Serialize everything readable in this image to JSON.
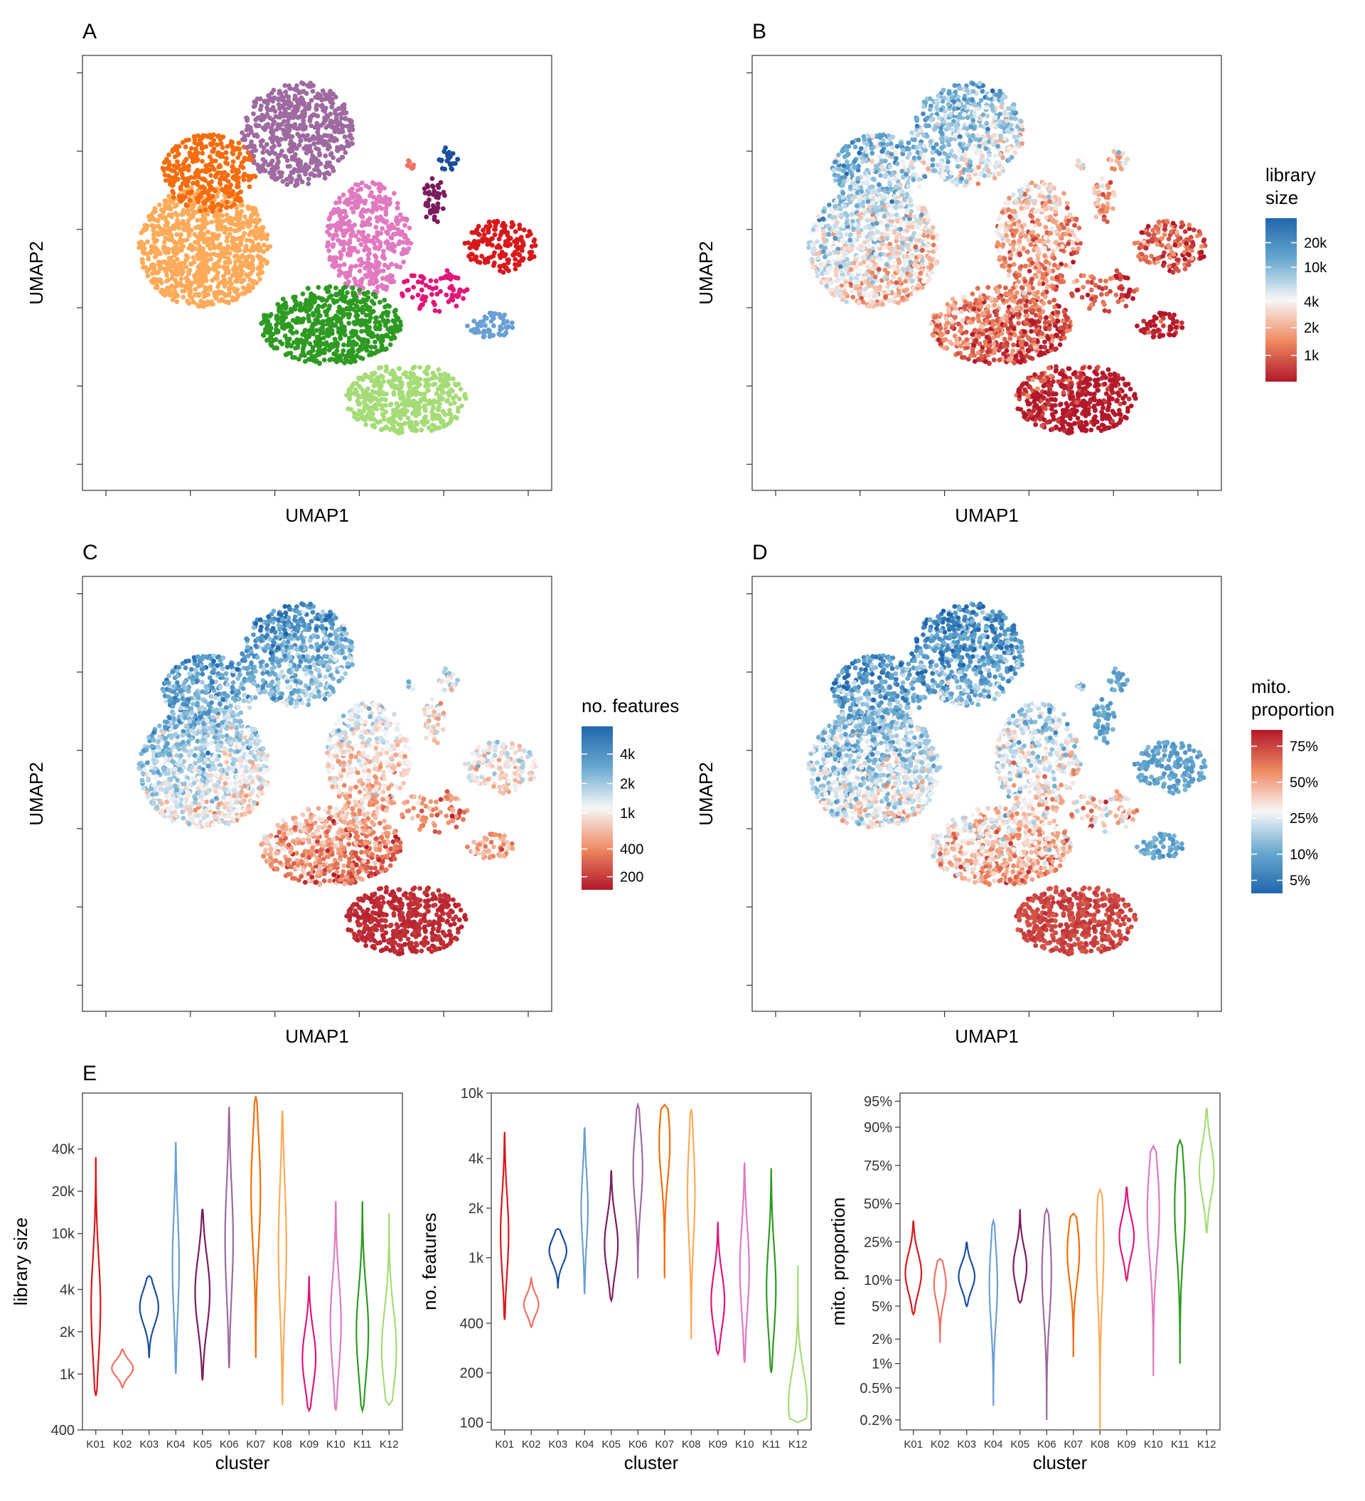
{
  "chart_data": [
    {
      "panel": "A",
      "type": "scatter",
      "xlabel": "UMAP1",
      "ylabel": "UMAP2",
      "color_by": "cluster",
      "cluster_colors": {
        "K01": "#d7191c",
        "K02": "#f07163",
        "K03": "#1b4f9c",
        "K04": "#6a9fd4",
        "K05": "#7a1c5e",
        "K06": "#9e6aa0",
        "K07": "#f46d0e",
        "K08": "#fdab5a",
        "K09": "#e0167a",
        "K10": "#e07ac0",
        "K11": "#2e9a22",
        "K12": "#a6dc78"
      },
      "clusters": [
        {
          "cluster": "K08",
          "cx": 0.26,
          "cy": 0.56,
          "rx": 0.14,
          "ry": 0.14,
          "n": 900
        },
        {
          "cluster": "K07",
          "cx": 0.27,
          "cy": 0.73,
          "rx": 0.1,
          "ry": 0.09,
          "n": 320
        },
        {
          "cluster": "K06",
          "cx": 0.46,
          "cy": 0.82,
          "rx": 0.12,
          "ry": 0.12,
          "n": 550
        },
        {
          "cluster": "K10",
          "cx": 0.61,
          "cy": 0.58,
          "rx": 0.09,
          "ry": 0.13,
          "n": 420
        },
        {
          "cluster": "K11",
          "cx": 0.53,
          "cy": 0.38,
          "rx": 0.15,
          "ry": 0.09,
          "n": 600
        },
        {
          "cluster": "K12",
          "cx": 0.69,
          "cy": 0.21,
          "rx": 0.13,
          "ry": 0.08,
          "n": 450
        },
        {
          "cluster": "K01",
          "cx": 0.89,
          "cy": 0.56,
          "rx": 0.08,
          "ry": 0.06,
          "n": 160
        },
        {
          "cluster": "K09",
          "cx": 0.75,
          "cy": 0.46,
          "rx": 0.07,
          "ry": 0.05,
          "n": 70
        },
        {
          "cluster": "K04",
          "cx": 0.87,
          "cy": 0.38,
          "rx": 0.05,
          "ry": 0.03,
          "n": 60
        },
        {
          "cluster": "K05",
          "cx": 0.75,
          "cy": 0.67,
          "rx": 0.025,
          "ry": 0.06,
          "n": 40
        },
        {
          "cluster": "K03",
          "cx": 0.78,
          "cy": 0.76,
          "rx": 0.02,
          "ry": 0.03,
          "n": 25
        },
        {
          "cluster": "K02",
          "cx": 0.7,
          "cy": 0.75,
          "rx": 0.012,
          "ry": 0.01,
          "n": 8
        }
      ]
    },
    {
      "panel": "B",
      "type": "scatter",
      "xlabel": "UMAP1",
      "ylabel": "UMAP2",
      "legend_title": [
        "library",
        "size"
      ],
      "legend_labels": [
        "20k",
        "10k",
        "4k",
        "2k",
        "1k"
      ],
      "legend_positions": [
        0.85,
        0.7,
        0.49,
        0.33,
        0.16
      ]
    },
    {
      "panel": "C",
      "type": "scatter",
      "xlabel": "UMAP1",
      "ylabel": "UMAP2",
      "legend_title": [
        "no. features"
      ],
      "legend_labels": [
        "4k",
        "2k",
        "1k",
        "400",
        "200"
      ],
      "legend_positions": [
        0.83,
        0.65,
        0.47,
        0.25,
        0.08
      ]
    },
    {
      "panel": "D",
      "type": "scatter",
      "xlabel": "UMAP1",
      "ylabel": "UMAP2",
      "legend_title": [
        "mito.",
        "proportion"
      ],
      "legend_labels": [
        "75%",
        "50%",
        "25%",
        "10%",
        "5%"
      ],
      "legend_positions": [
        0.9,
        0.68,
        0.46,
        0.24,
        0.08
      ]
    },
    {
      "panel": "E",
      "type": "violin",
      "subplots": [
        {
          "xlabel": "cluster",
          "ylabel": "library size",
          "scale": "log",
          "ylim": [
            400,
            100000
          ],
          "yticks": [
            400,
            1000,
            2000,
            4000,
            10000,
            20000,
            40000
          ],
          "yticklabels": [
            "400",
            "1k",
            "2k",
            "4k",
            "10k",
            "20k",
            "40k"
          ],
          "categories": [
            "K01",
            "K02",
            "K03",
            "K04",
            "K05",
            "K06",
            "K07",
            "K08",
            "K09",
            "K10",
            "K11",
            "K12"
          ],
          "violins": [
            {
              "min": 700,
              "max": 35000,
              "median": 3000,
              "width": 0.35
            },
            {
              "min": 800,
              "max": 1500,
              "median": 1100,
              "width": 0.8
            },
            {
              "min": 1300,
              "max": 5000,
              "median": 3000,
              "width": 0.7
            },
            {
              "min": 1000,
              "max": 45000,
              "median": 6000,
              "width": 0.25
            },
            {
              "min": 900,
              "max": 15000,
              "median": 3800,
              "width": 0.55
            },
            {
              "min": 1100,
              "max": 80000,
              "median": 9000,
              "width": 0.3
            },
            {
              "min": 1300,
              "max": 95000,
              "median": 20000,
              "width": 0.35
            },
            {
              "min": 600,
              "max": 75000,
              "median": 8000,
              "width": 0.3
            },
            {
              "min": 550,
              "max": 5000,
              "median": 1300,
              "width": 0.5
            },
            {
              "min": 550,
              "max": 17000,
              "median": 2300,
              "width": 0.4
            },
            {
              "min": 550,
              "max": 17000,
              "median": 2000,
              "width": 0.45
            },
            {
              "min": 600,
              "max": 14000,
              "median": 1500,
              "width": 0.55
            }
          ]
        },
        {
          "xlabel": "cluster",
          "ylabel": "no. features",
          "scale": "log",
          "ylim": [
            90,
            10000
          ],
          "yticks": [
            100,
            200,
            400,
            1000,
            2000,
            4000,
            10000
          ],
          "yticklabels": [
            "100",
            "200",
            "400",
            "1k",
            "2k",
            "4k",
            "10k"
          ],
          "categories": [
            "K01",
            "K02",
            "K03",
            "K04",
            "K05",
            "K06",
            "K07",
            "K08",
            "K09",
            "K10",
            "K11",
            "K12"
          ],
          "violins": [
            {
              "min": 420,
              "max": 5800,
              "median": 1400,
              "width": 0.3
            },
            {
              "min": 380,
              "max": 750,
              "median": 520,
              "width": 0.55
            },
            {
              "min": 650,
              "max": 1500,
              "median": 1100,
              "width": 0.65
            },
            {
              "min": 600,
              "max": 6200,
              "median": 2000,
              "width": 0.25
            },
            {
              "min": 550,
              "max": 3400,
              "median": 1200,
              "width": 0.5
            },
            {
              "min": 750,
              "max": 8500,
              "median": 3500,
              "width": 0.35
            },
            {
              "min": 750,
              "max": 8500,
              "median": 5000,
              "width": 0.4
            },
            {
              "min": 320,
              "max": 8000,
              "median": 2500,
              "width": 0.28
            },
            {
              "min": 260,
              "max": 1650,
              "median": 550,
              "width": 0.5
            },
            {
              "min": 230,
              "max": 3800,
              "median": 850,
              "width": 0.35
            },
            {
              "min": 200,
              "max": 3500,
              "median": 650,
              "width": 0.35
            },
            {
              "min": 100,
              "max": 900,
              "median": 130,
              "width": 0.7
            }
          ]
        },
        {
          "xlabel": "cluster",
          "ylabel": "mito. proportion",
          "scale": "logit",
          "ylim": [
            0.0015,
            0.96
          ],
          "yticks": [
            0.002,
            0.005,
            0.01,
            0.02,
            0.05,
            0.1,
            0.25,
            0.5,
            0.75,
            0.9,
            0.95
          ],
          "yticklabels": [
            "0.2%",
            "0.5%",
            "1%",
            "2%",
            "5%",
            "10%",
            "25%",
            "50%",
            "75%",
            "90%",
            "95%"
          ],
          "categories": [
            "K01",
            "K02",
            "K03",
            "K04",
            "K05",
            "K06",
            "K07",
            "K08",
            "K09",
            "K10",
            "K11",
            "K12"
          ],
          "violins": [
            {
              "min": 0.04,
              "max": 0.38,
              "median": 0.12,
              "width": 0.6
            },
            {
              "min": 0.018,
              "max": 0.17,
              "median": 0.09,
              "width": 0.45
            },
            {
              "min": 0.05,
              "max": 0.25,
              "median": 0.11,
              "width": 0.6
            },
            {
              "min": 0.003,
              "max": 0.38,
              "median": 0.09,
              "width": 0.3
            },
            {
              "min": 0.055,
              "max": 0.46,
              "median": 0.14,
              "width": 0.5
            },
            {
              "min": 0.002,
              "max": 0.46,
              "median": 0.12,
              "width": 0.35
            },
            {
              "min": 0.012,
              "max": 0.43,
              "median": 0.2,
              "width": 0.45
            },
            {
              "min": 0.0015,
              "max": 0.6,
              "median": 0.22,
              "width": 0.28
            },
            {
              "min": 0.1,
              "max": 0.62,
              "median": 0.28,
              "width": 0.55
            },
            {
              "min": 0.007,
              "max": 0.84,
              "median": 0.45,
              "width": 0.45
            },
            {
              "min": 0.01,
              "max": 0.86,
              "median": 0.48,
              "width": 0.4
            },
            {
              "min": 0.3,
              "max": 0.94,
              "median": 0.72,
              "width": 0.55
            }
          ]
        }
      ]
    }
  ]
}
